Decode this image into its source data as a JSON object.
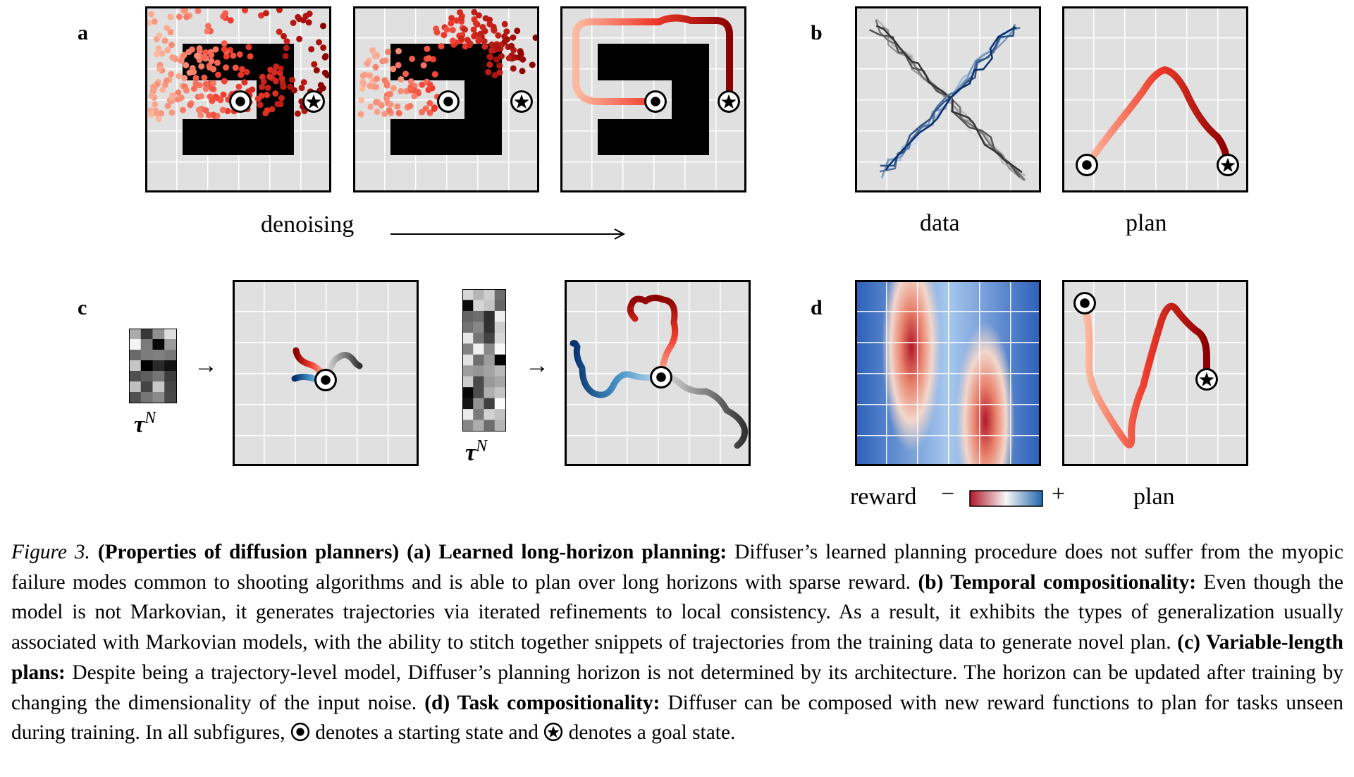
{
  "panel_labels": {
    "a": "a",
    "b": "b",
    "c": "c",
    "d": "d"
  },
  "labels": {
    "denoising": "denoising",
    "data": "data",
    "plan_b": "plan",
    "plan_d": "plan",
    "reward": "reward",
    "minus": "−",
    "plus": "+",
    "tau": "τ",
    "tau_sup": "N",
    "arrow": "→"
  },
  "caption": {
    "fig": "Figure 3.",
    "title": "(Properties of diffusion planners)",
    "a_head": "(a) Learned long-horizon planning:",
    "a_text": "Diffuser’s learned planning procedure does not suffer from the myopic failure modes common to shooting algorithms and is able to plan over long horizons with sparse reward.",
    "b_head": "(b) Temporal compositionality:",
    "b_text": "Even though the model is not Markovian, it generates trajectories via iterated refinements to local consistency. As a result, it exhibits the types of generalization usually associated with Markovian models, with the ability to stitch together snippets of trajectories from the training data to generate novel plan.",
    "c_head": "(c) Variable-length plans:",
    "c_text": "Despite being a trajectory-level model, Diffuser’s planning horizon is not determined by its architecture. The horizon can be updated after training by changing the dimensionality of the input noise.",
    "d_head": "(d) Task compositionality:",
    "d_text": "Diffuser can be composed with new reward functions to plan for tasks unseen during training. In all subfigures,",
    "start_text": "denotes a starting state and",
    "goal_text": "denotes a goal state."
  },
  "colors": {
    "panel_bg": "#e0e0e0",
    "grid": "#ffffff",
    "wall": "#000000",
    "red_dark": "#8b0000",
    "red": "#e8322a",
    "red_light": "#fbb9a4",
    "blue_dark": "#08306b",
    "blue_light": "#c6dbef",
    "gray_dark": "#333333",
    "gray_light": "#d9d9d9"
  },
  "icons": {
    "start": "start-state-icon",
    "goal": "goal-state-icon"
  }
}
